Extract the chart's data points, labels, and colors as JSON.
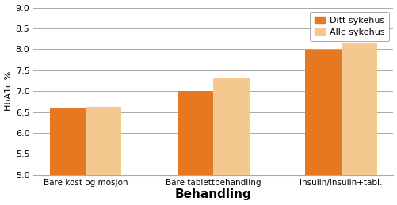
{
  "categories": [
    "Bare kost og mosjon",
    "Bare tablettbehandling",
    "Insulin/Insulin+tabl."
  ],
  "ditt_sykehus": [
    6.6,
    7.0,
    7.98
  ],
  "alle_sykehus": [
    6.62,
    7.3,
    8.15
  ],
  "color_ditt": "#E87722",
  "color_alle": "#F5C890",
  "ylabel": "HbA1c %",
  "xlabel": "Behandling",
  "legend_ditt": "Ditt sykehus",
  "legend_alle": "Alle sykehus",
  "ylim_min": 5.0,
  "ylim_max": 9.0,
  "yticks": [
    5.0,
    5.5,
    6.0,
    6.5,
    7.0,
    7.5,
    8.0,
    8.5,
    9.0
  ],
  "bar_width": 0.28,
  "background_color": "#ffffff",
  "grid_color": "#aaaaaa",
  "spine_color": "#aaaaaa"
}
